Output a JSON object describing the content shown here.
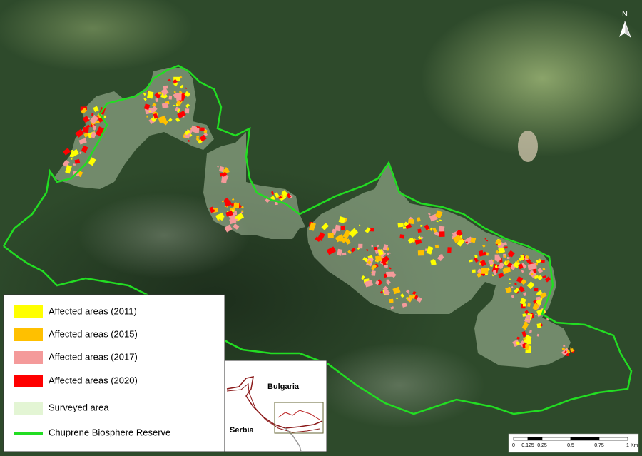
{
  "north_arrow": "N",
  "legend": {
    "items": [
      {
        "label": "Affected areas (2011)",
        "color": "#ffff00",
        "kind": "patch"
      },
      {
        "label": "Affected areas (2015)",
        "color": "#ffc000",
        "kind": "patch"
      },
      {
        "label": "Affected areas (2017)",
        "color": "#f49a9a",
        "kind": "patch"
      },
      {
        "label": "Affected areas (2020)",
        "color": "#ff0000",
        "kind": "patch"
      },
      {
        "label": "Surveyed area",
        "color": "#e3f5d4",
        "kind": "area"
      },
      {
        "label": "Chuprene Biosphere Reserve",
        "color": "#22dd22",
        "kind": "line"
      }
    ]
  },
  "inset": {
    "labels": [
      "Bulgaria",
      "Serbia"
    ]
  },
  "scale_bar": {
    "ticks": [
      "0",
      "0.125",
      "0.25",
      "0.5",
      "0.75",
      "1"
    ],
    "unit": "Km"
  }
}
